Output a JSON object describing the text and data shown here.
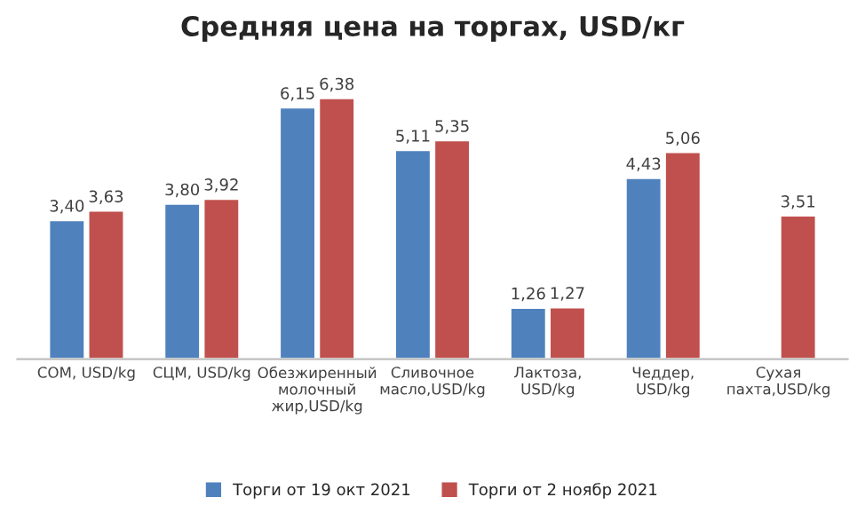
{
  "chart_data": {
    "type": "bar",
    "title": "Средняя цена на торгах, USD/кг",
    "categories": [
      "СОМ, USD/kg",
      "СЦМ, USD/kg",
      "Обезжиренный молочный жир,USD/kg",
      "Сливочное масло,USD/kg",
      "Лактоза,USD/kg",
      "Чеддер,USD/kg",
      "Сухая пахта,USD/kg"
    ],
    "series": [
      {
        "name": "Торги от 19 окт 2021",
        "color": "#4f81bd",
        "values": [
          3.4,
          3.8,
          6.15,
          5.11,
          1.26,
          4.43,
          null
        ],
        "value_labels": [
          "3,40",
          "3,80",
          "6,15",
          "5,11",
          "1,26",
          "4,43",
          null
        ]
      },
      {
        "name": "Торги от 2 ноябр 2021",
        "color": "#c0504d",
        "values": [
          3.63,
          3.92,
          6.38,
          5.35,
          1.27,
          5.06,
          3.51
        ],
        "value_labels": [
          "3,63",
          "3,92",
          "6,38",
          "5,35",
          "1,27",
          "5,06",
          "3,51"
        ]
      }
    ],
    "grid": false,
    "legend": "bottom"
  }
}
